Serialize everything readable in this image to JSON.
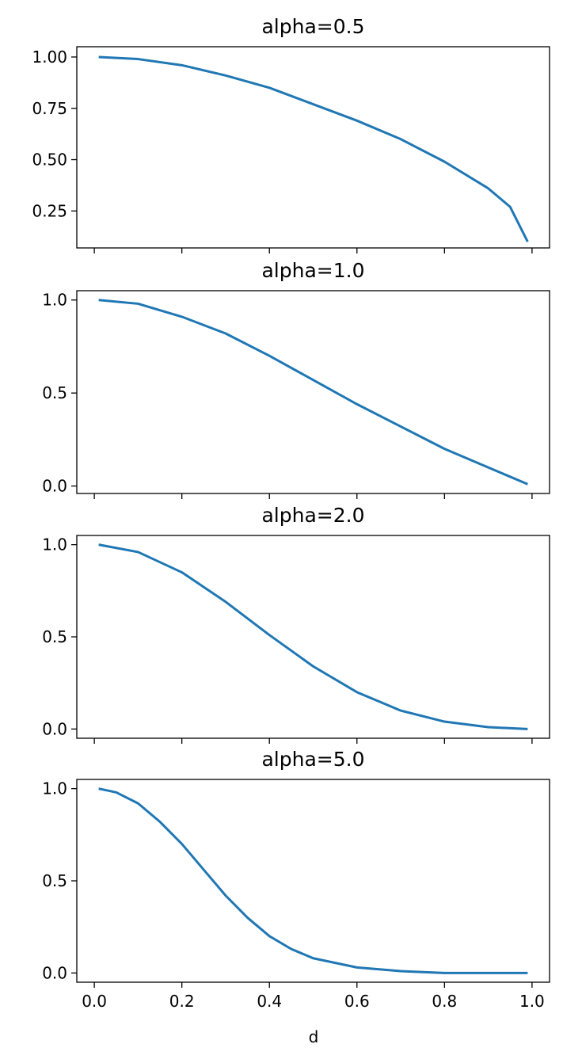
{
  "figure": {
    "xlabel": "d"
  },
  "chart_data": [
    {
      "type": "line",
      "title": "alpha=0.5",
      "xlabel": "",
      "ylabel": "",
      "xlim": [
        -0.04,
        1.04
      ],
      "ylim": [
        0.07,
        1.05
      ],
      "xticks": [
        0.0,
        0.2,
        0.4,
        0.6,
        0.8,
        1.0
      ],
      "xtick_labels_visible": false,
      "yticks": [
        0.25,
        0.5,
        0.75,
        1.0
      ],
      "ytick_labels": [
        "0.25",
        "0.50",
        "0.75",
        "1.00"
      ],
      "grid": false,
      "line_color": "#1f77b4",
      "series": [
        {
          "x": [
            0.01,
            0.1,
            0.2,
            0.3,
            0.4,
            0.5,
            0.6,
            0.7,
            0.8,
            0.9,
            0.95,
            0.99
          ],
          "y": [
            1.0,
            0.99,
            0.96,
            0.91,
            0.85,
            0.77,
            0.69,
            0.6,
            0.49,
            0.36,
            0.27,
            0.1
          ]
        }
      ]
    },
    {
      "type": "line",
      "title": "alpha=1.0",
      "xlabel": "",
      "ylabel": "",
      "xlim": [
        -0.04,
        1.04
      ],
      "ylim": [
        -0.04,
        1.05
      ],
      "xticks": [
        0.0,
        0.2,
        0.4,
        0.6,
        0.8,
        1.0
      ],
      "xtick_labels_visible": false,
      "yticks": [
        0.0,
        0.5,
        1.0
      ],
      "ytick_labels": [
        "0.0",
        "0.5",
        "1.0"
      ],
      "grid": false,
      "line_color": "#1f77b4",
      "series": [
        {
          "x": [
            0.01,
            0.1,
            0.2,
            0.3,
            0.4,
            0.5,
            0.6,
            0.7,
            0.8,
            0.9,
            0.99
          ],
          "y": [
            1.0,
            0.98,
            0.91,
            0.82,
            0.7,
            0.57,
            0.44,
            0.32,
            0.2,
            0.1,
            0.01
          ]
        }
      ]
    },
    {
      "type": "line",
      "title": "alpha=2.0",
      "xlabel": "",
      "ylabel": "",
      "xlim": [
        -0.04,
        1.04
      ],
      "ylim": [
        -0.05,
        1.05
      ],
      "xticks": [
        0.0,
        0.2,
        0.4,
        0.6,
        0.8,
        1.0
      ],
      "xtick_labels_visible": false,
      "yticks": [
        0.0,
        0.5,
        1.0
      ],
      "ytick_labels": [
        "0.0",
        "0.5",
        "1.0"
      ],
      "grid": false,
      "line_color": "#1f77b4",
      "series": [
        {
          "x": [
            0.01,
            0.1,
            0.2,
            0.3,
            0.4,
            0.5,
            0.6,
            0.7,
            0.8,
            0.9,
            0.99
          ],
          "y": [
            1.0,
            0.96,
            0.85,
            0.69,
            0.51,
            0.34,
            0.2,
            0.1,
            0.04,
            0.01,
            0.0
          ]
        }
      ]
    },
    {
      "type": "line",
      "title": "alpha=5.0",
      "xlabel": "d",
      "ylabel": "",
      "xlim": [
        -0.04,
        1.04
      ],
      "ylim": [
        -0.05,
        1.05
      ],
      "xticks": [
        0.0,
        0.2,
        0.4,
        0.6,
        0.8,
        1.0
      ],
      "xtick_labels": [
        "0.0",
        "0.2",
        "0.4",
        "0.6",
        "0.8",
        "1.0"
      ],
      "xtick_labels_visible": true,
      "yticks": [
        0.0,
        0.5,
        1.0
      ],
      "ytick_labels": [
        "0.0",
        "0.5",
        "1.0"
      ],
      "grid": false,
      "line_color": "#1f77b4",
      "series": [
        {
          "x": [
            0.01,
            0.05,
            0.1,
            0.15,
            0.2,
            0.25,
            0.3,
            0.35,
            0.4,
            0.45,
            0.5,
            0.6,
            0.7,
            0.8,
            0.9,
            0.99
          ],
          "y": [
            1.0,
            0.98,
            0.92,
            0.82,
            0.7,
            0.56,
            0.42,
            0.3,
            0.2,
            0.13,
            0.08,
            0.03,
            0.01,
            0.0,
            0.0,
            0.0
          ]
        }
      ]
    }
  ]
}
